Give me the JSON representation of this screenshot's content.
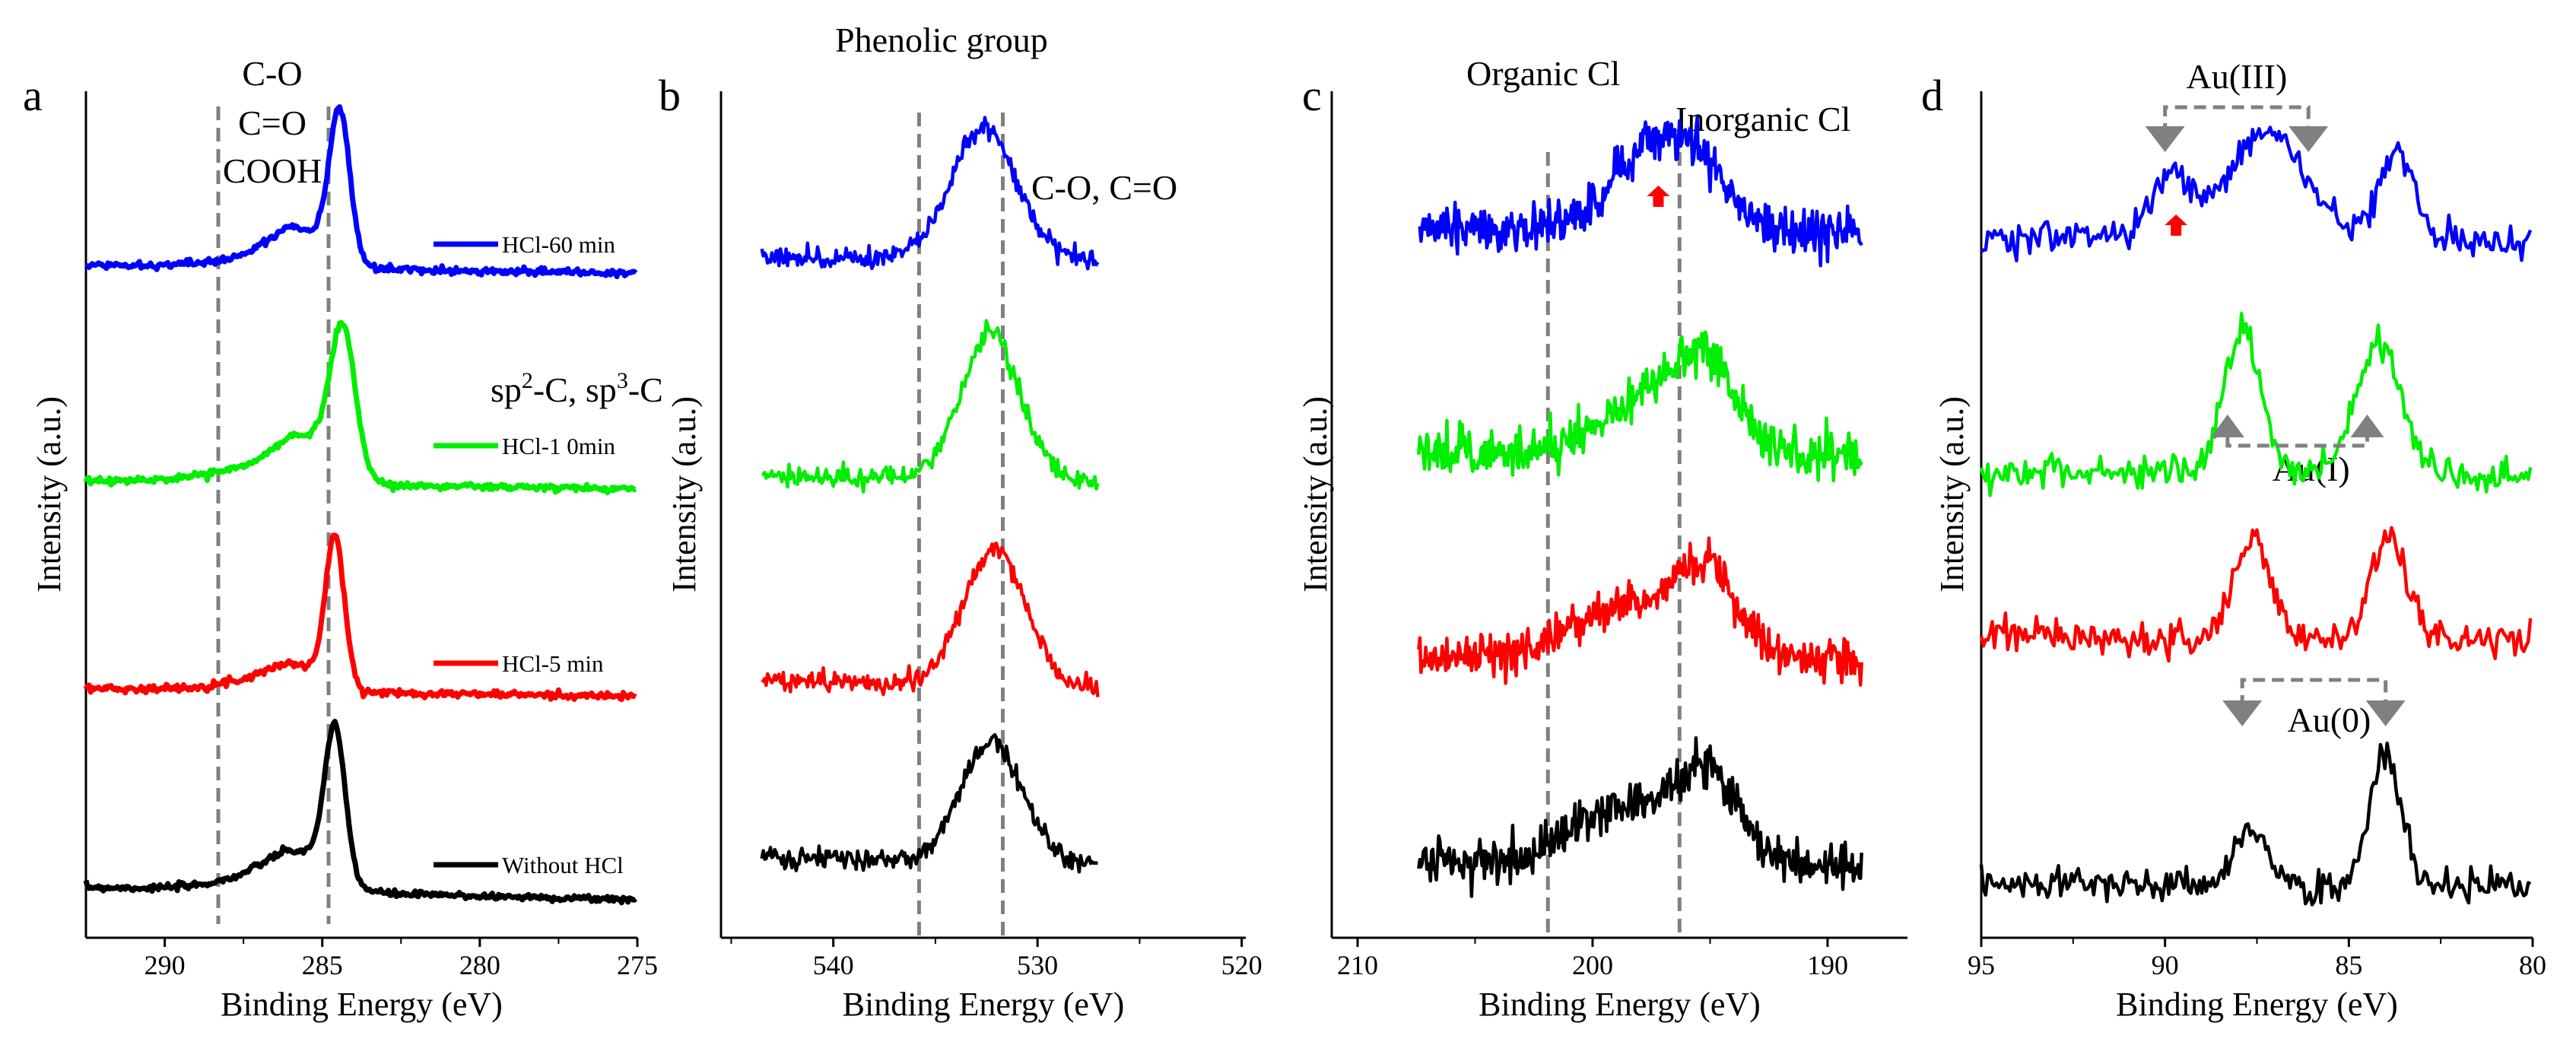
{
  "chart_data": [
    {
      "type": "line",
      "panel": "a",
      "xlabel": "Binding Energy (eV)",
      "ylabel": "Intensity (a.u.)",
      "xlim": [
        292.5,
        275
      ],
      "ylim": [
        0,
        10
      ],
      "xticks": [
        290,
        285,
        280,
        275
      ],
      "xtick_labels": [
        "290",
        "285",
        "280",
        "275"
      ],
      "reference_lines": [
        288.3,
        284.8
      ],
      "annotations": {
        "c_o": "C-O",
        "c_eq_o": "C=O",
        "cooh": "COOH",
        "sp": [
          "sp",
          "2",
          "-C, sp",
          "3",
          "-C"
        ]
      },
      "x_range": [
        292.5,
        275
      ],
      "step": 0.05,
      "noise": 0.02,
      "series": [
        {
          "name": "Without HCl",
          "color": "#000000",
          "base": [
            0.6,
            0.45
          ],
          "peaks": [
            [
              284.6,
              1.75,
              0.33
            ],
            [
              285.8,
              0.45,
              1.0
            ],
            [
              287.6,
              0.1,
              1.2
            ]
          ]
        },
        {
          "name": "HCl-5 min",
          "color": "#ff0000",
          "base": [
            2.95,
            2.85
          ],
          "peaks": [
            [
              284.6,
              1.75,
              0.3
            ],
            [
              285.9,
              0.3,
              0.9
            ],
            [
              287.6,
              0.08,
              1.1
            ]
          ]
        },
        {
          "name": "HCl-1 0min",
          "color": "#00ee00",
          "base": [
            5.4,
            5.3
          ],
          "peaks": [
            [
              284.35,
              1.7,
              0.4
            ],
            [
              285.6,
              0.5,
              0.9
            ],
            [
              287.4,
              0.15,
              1.5
            ]
          ]
        },
        {
          "name": "HCl-60 min",
          "color": "#0000ff",
          "base": [
            7.95,
            7.85
          ],
          "peaks": [
            [
              284.45,
              1.75,
              0.33
            ],
            [
              285.8,
              0.45,
              0.9
            ],
            [
              287.6,
              0.08,
              1.3
            ]
          ]
        }
      ]
    },
    {
      "type": "line",
      "panel": "b",
      "xlabel": "Binding Energy (eV)",
      "ylabel": "Intensity (a.u.)",
      "xlim": [
        545.5,
        519.8
      ],
      "ylim": [
        0,
        10
      ],
      "xticks": [
        540,
        530,
        520
      ],
      "xtick_labels": [
        "540",
        "530",
        "520"
      ],
      "reference_lines": [
        535.8,
        531.7
      ],
      "annotations": {
        "phenolic": "Phenolic group",
        "co": "C-O, C=O"
      },
      "x_range": [
        543.5,
        527
      ],
      "step": 0.07,
      "noise": 0.06,
      "series": [
        {
          "name": "Without HCl",
          "color": "#000000",
          "base": [
            0.95,
            0.85
          ],
          "peaks": [
            [
              532.2,
              1.45,
              1.5
            ]
          ]
        },
        {
          "name": "HCl-5 min",
          "color": "#ff0000",
          "base": [
            3.05,
            2.95
          ],
          "peaks": [
            [
              532.1,
              1.6,
              1.5
            ]
          ]
        },
        {
          "name": "HCl-1 0min",
          "color": "#00ee00",
          "base": [
            5.45,
            5.4
          ],
          "peaks": [
            [
              532.3,
              1.75,
              1.4
            ]
          ]
        },
        {
          "name": "HCl-60 min",
          "color": "#0000ff",
          "base": [
            8.05,
            8.0
          ],
          "peaks": [
            [
              532.6,
              1.55,
              1.6
            ]
          ]
        }
      ]
    },
    {
      "type": "line",
      "panel": "c",
      "xlabel": "Binding Energy (eV)",
      "ylabel": "Intensity (a.u.)",
      "xlim": [
        211.1,
        186.6
      ],
      "ylim": [
        0,
        10
      ],
      "xticks": [
        210,
        200,
        190
      ],
      "xtick_labels": [
        "210",
        "200",
        "190"
      ],
      "reference_lines": [
        201.9,
        196.3
      ],
      "annotations": {
        "organic": "Organic Cl",
        "inorganic": "Inorganic Cl",
        "marker_x": 197.2
      },
      "x_range": [
        207.4,
        188.5
      ],
      "step": 0.05,
      "noise": 0.13,
      "series": [
        {
          "name": "Without HCl",
          "color": "#000000",
          "base": [
            0.9,
            0.85
          ],
          "peaks": [
            [
              198.5,
              0.7,
              2.2
            ],
            [
              195.0,
              0.95,
              1.3
            ]
          ]
        },
        {
          "name": "HCl-5 min",
          "color": "#ff0000",
          "base": [
            3.3,
            3.3
          ],
          "peaks": [
            [
              198.5,
              0.65,
              2.2
            ],
            [
              195.0,
              0.95,
              1.3
            ]
          ]
        },
        {
          "name": "HCl-1 0min",
          "color": "#00ee00",
          "base": [
            5.75,
            5.7
          ],
          "peaks": [
            [
              197.8,
              0.6,
              2.0
            ],
            [
              195.2,
              0.95,
              1.3
            ]
          ]
        },
        {
          "name": "HCl-60 min",
          "color": "#0000ff",
          "base": [
            8.4,
            8.35
          ],
          "peaks": [
            [
              197.6,
              0.9,
              1.6
            ],
            [
              195.4,
              0.6,
              1.2
            ]
          ]
        }
      ]
    },
    {
      "type": "line",
      "panel": "d",
      "xlabel": "Binding Energy (eV)",
      "ylabel": "Intensity (a.u.)",
      "xlim": [
        95,
        80
      ],
      "ylim": [
        0,
        10
      ],
      "xticks": [
        95,
        90,
        85,
        80
      ],
      "xtick_labels": [
        "95",
        "90",
        "85",
        "80"
      ],
      "annotations": {
        "au3": "Au(III)",
        "au3_positions": [
          90.0,
          86.1
        ],
        "au1": "Au(I)",
        "au1_positions": [
          88.3,
          84.5
        ],
        "au0": "Au(0)",
        "au0_positions": [
          87.9,
          84.0
        ],
        "marker_x": 89.7
      },
      "x_range": [
        95,
        80
      ],
      "step": 0.06,
      "noise": 0.1,
      "series": [
        {
          "name": "Without HCl",
          "color": "#000000",
          "base": [
            0.65,
            0.6
          ],
          "peaks": [
            [
              87.7,
              0.6,
              0.45
            ],
            [
              84.0,
              1.55,
              0.42
            ]
          ]
        },
        {
          "name": "HCl-5 min",
          "color": "#ff0000",
          "base": [
            3.55,
            3.5
          ],
          "peaks": [
            [
              87.6,
              1.2,
              0.5
            ],
            [
              83.9,
              1.25,
              0.45
            ]
          ]
        },
        {
          "name": "HCl-1 0min",
          "color": "#00ee00",
          "base": [
            5.5,
            5.45
          ],
          "peaks": [
            [
              87.9,
              1.7,
              0.5
            ],
            [
              84.2,
              1.55,
              0.6
            ]
          ]
        },
        {
          "name": "HCl-60 min",
          "color": "#0000ff",
          "base": [
            8.3,
            8.2
          ],
          "peaks": [
            [
              89.8,
              0.65,
              0.6
            ],
            [
              87.2,
              1.3,
              1.0
            ],
            [
              83.7,
              1.05,
              0.5
            ]
          ]
        }
      ]
    }
  ],
  "panel_letters": [
    "a",
    "b",
    "c",
    "d"
  ]
}
